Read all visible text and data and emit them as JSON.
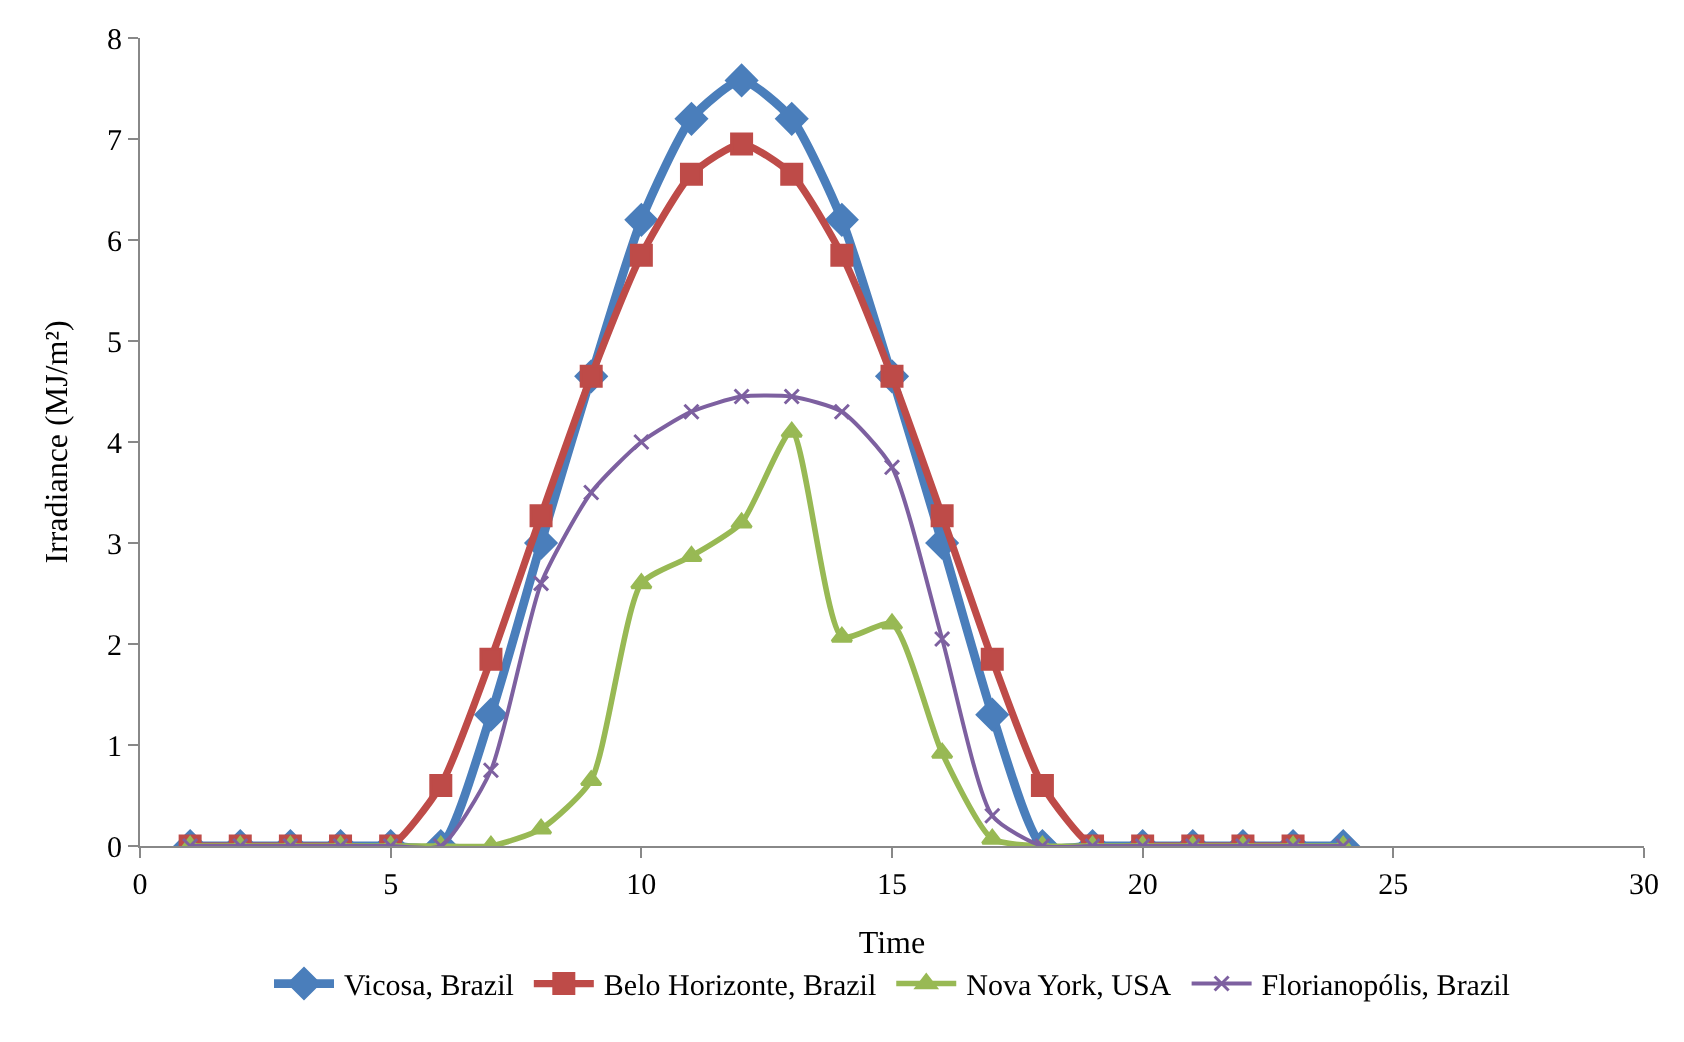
{
  "chart_data": {
    "type": "line",
    "xlabel": "Time",
    "ylabel": "Irradiance (MJ/m²)",
    "x": [
      1,
      2,
      3,
      4,
      5,
      6,
      7,
      8,
      9,
      10,
      11,
      12,
      13,
      14,
      15,
      16,
      17,
      18,
      19,
      20,
      21,
      22,
      23,
      24
    ],
    "series": [
      {
        "name": "Vicosa, Brazil",
        "color": "#4a7ebb",
        "marker": "diamond",
        "values": [
          0,
          0,
          0,
          0,
          0,
          0,
          1.3,
          3.0,
          4.65,
          6.2,
          7.2,
          7.58,
          7.2,
          6.2,
          4.65,
          3.0,
          1.3,
          0,
          0,
          0,
          0,
          0,
          0,
          0
        ]
      },
      {
        "name": "Belo Horizonte, Brazil",
        "color": "#be4b48",
        "marker": "square",
        "x": [
          1,
          2,
          3,
          4,
          5,
          6,
          7,
          8,
          9,
          10,
          11,
          12,
          13,
          14,
          15,
          16,
          17,
          18,
          19,
          20,
          21,
          22,
          23
        ],
        "values": [
          0,
          0,
          0,
          0,
          0,
          0.6,
          1.85,
          3.27,
          4.65,
          5.85,
          6.65,
          6.95,
          6.65,
          5.85,
          4.65,
          3.27,
          1.85,
          0.6,
          0,
          0,
          0,
          0,
          0
        ]
      },
      {
        "name": "Nova York, USA",
        "color": "#98b954",
        "marker": "triangle",
        "values": [
          0,
          0,
          0,
          0,
          0,
          0,
          0,
          0.17,
          0.65,
          2.6,
          2.87,
          3.2,
          4.1,
          2.07,
          2.2,
          0.92,
          0.07,
          0,
          0,
          0,
          0,
          0,
          0,
          0
        ]
      },
      {
        "name": "Florianopólis, Brazil",
        "color": "#7d60a0",
        "marker": "cross",
        "values": [
          0,
          0,
          0,
          0,
          0,
          0,
          0.75,
          2.6,
          3.5,
          4.0,
          4.3,
          4.45,
          4.45,
          4.3,
          3.75,
          2.05,
          0.3,
          0,
          0,
          0,
          0,
          0,
          0,
          0
        ]
      }
    ],
    "xlim": [
      0,
      30
    ],
    "xticks": [
      0,
      5,
      10,
      15,
      20,
      25,
      30
    ],
    "ylim": [
      0,
      8
    ],
    "yticks": [
      0,
      1,
      2,
      3,
      4,
      5,
      6,
      7,
      8
    ],
    "legend": "bottom",
    "line_style": "solid"
  }
}
